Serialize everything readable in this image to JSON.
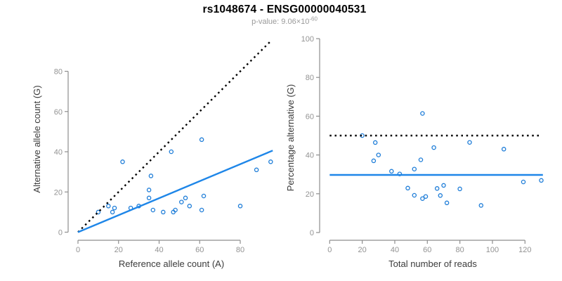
{
  "header": {
    "title": "rs1048674 - ENSG00000040531",
    "subtitle_prefix": "p-value: ",
    "pvalue_base": "9.06×10",
    "pvalue_exponent": "-60"
  },
  "style": {
    "accent_blue": "#1E86E8",
    "point_blue": "#1E7DD8",
    "dotted_black": "#000000",
    "axis_gray": "#8E8E8E",
    "tick_label_gray": "#939393",
    "axis_title_color": "#3B3B3B",
    "subtitle_gray": "#9A9A9A"
  },
  "chart_data": [
    {
      "type": "scatter",
      "name": "ref-vs-alt-scatter",
      "title": "rs1048674 - ENSG00000040531",
      "subtitle": "p-value: 9.06×10^-60",
      "xlabel": "Reference allele count (A)",
      "ylabel": "Alternative allele count (G)",
      "xticks": [
        0,
        20,
        40,
        60,
        80
      ],
      "yticks": [
        0,
        20,
        40,
        60,
        80
      ],
      "xlim": [
        0,
        96
      ],
      "ylim": [
        0,
        96
      ],
      "grid": false,
      "legend": false,
      "points": [
        [
          10,
          10
        ],
        [
          15,
          13
        ],
        [
          18,
          12
        ],
        [
          17,
          10
        ],
        [
          22,
          35
        ],
        [
          26,
          12
        ],
        [
          30,
          13
        ],
        [
          36,
          28
        ],
        [
          35,
          21
        ],
        [
          35,
          17
        ],
        [
          37,
          11
        ],
        [
          42,
          10
        ],
        [
          47,
          10
        ],
        [
          48,
          11
        ],
        [
          46,
          40
        ],
        [
          51,
          15
        ],
        [
          55,
          13
        ],
        [
          53,
          17
        ],
        [
          61,
          11
        ],
        [
          62,
          18
        ],
        [
          61,
          46
        ],
        [
          80,
          13
        ],
        [
          88,
          31
        ],
        [
          95,
          35
        ]
      ],
      "lines": [
        {
          "name": "identity-line",
          "style": "dotted",
          "color": "#000000",
          "x1": 0,
          "y1": 0,
          "x2": 95,
          "y2": 95
        },
        {
          "name": "fit-line",
          "style": "solid",
          "color": "#1E86E8",
          "x1": 0,
          "y1": 0,
          "x2": 96,
          "y2": 40.6
        }
      ]
    },
    {
      "type": "scatter",
      "name": "reads-vs-percentage-scatter",
      "xlabel": "Total number of reads",
      "ylabel": "Percentage alternative (G)",
      "xticks": [
        0,
        20,
        40,
        60,
        80,
        100,
        120
      ],
      "yticks": [
        0,
        20,
        40,
        60,
        80,
        100
      ],
      "xlim": [
        0,
        131
      ],
      "ylim": [
        0,
        104
      ],
      "grid": false,
      "legend": false,
      "points": [
        [
          20,
          50
        ],
        [
          28,
          46.4
        ],
        [
          30,
          40
        ],
        [
          27,
          37
        ],
        [
          57,
          61.4
        ],
        [
          38,
          31.6
        ],
        [
          43,
          30.2
        ],
        [
          64,
          43.8
        ],
        [
          56,
          37.5
        ],
        [
          52,
          32.7
        ],
        [
          48,
          22.9
        ],
        [
          52,
          19.2
        ],
        [
          57,
          17.5
        ],
        [
          59,
          18.6
        ],
        [
          86,
          46.5
        ],
        [
          66,
          22.7
        ],
        [
          68,
          19.1
        ],
        [
          70,
          24.3
        ],
        [
          72,
          15.3
        ],
        [
          80,
          22.5
        ],
        [
          107,
          43
        ],
        [
          93,
          14
        ],
        [
          119,
          26.1
        ],
        [
          130,
          26.9
        ]
      ],
      "lines": [
        {
          "name": "expected-50pct-line",
          "style": "dotted",
          "color": "#000000",
          "x1": 0,
          "y1": 50,
          "x2": 130.5,
          "y2": 50
        },
        {
          "name": "mean-percentage-line",
          "style": "solid",
          "color": "#1E86E8",
          "x1": 0,
          "y1": 29.7,
          "x2": 131,
          "y2": 29.7
        }
      ]
    }
  ]
}
